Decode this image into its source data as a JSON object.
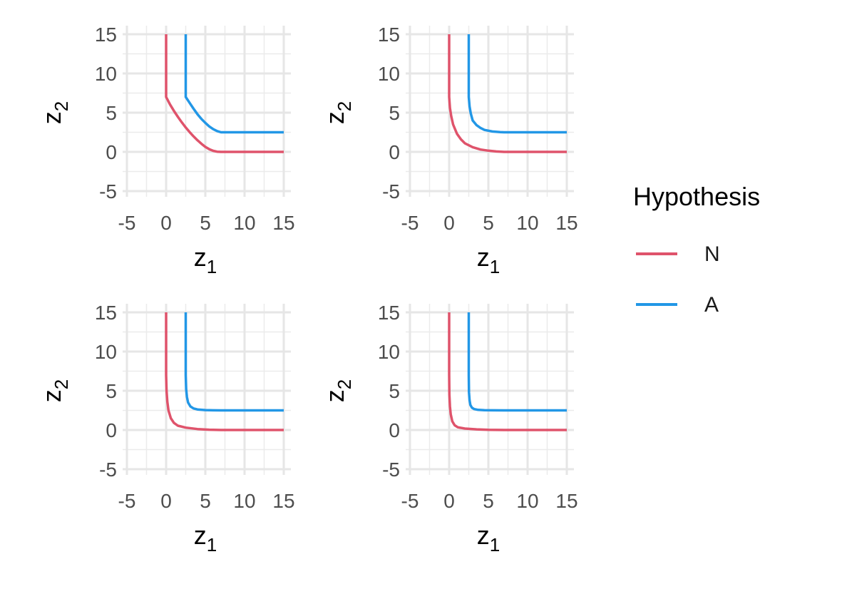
{
  "chart_data": [
    {
      "type": "line",
      "xlabel": "z",
      "xlabel_sub": "1",
      "ylabel": "z",
      "ylabel_sub": "2",
      "xlim": [
        -5,
        15
      ],
      "ylim": [
        -5,
        15
      ],
      "x_ticks": [
        "-5",
        "0",
        "5",
        "10",
        "15"
      ],
      "y_ticks": [
        "-5",
        "0",
        "5",
        "10",
        "15"
      ],
      "grid": true,
      "series": [
        {
          "name": "N",
          "color": "#DF536B",
          "x": [
            0,
            0,
            0.5,
            1,
            1.5,
            2,
            2.5,
            3,
            3.5,
            4,
            4.5,
            5,
            5.5,
            6,
            6.5,
            7,
            15
          ],
          "y": [
            15,
            7,
            6.04,
            5.22,
            4.46,
            3.76,
            3.11,
            2.52,
            1.97,
            1.48,
            1.04,
            0.64,
            0.35,
            0.14,
            0.03,
            0,
            0
          ]
        },
        {
          "name": "A",
          "color": "#2297E6",
          "x": [
            2.5,
            2.5,
            3,
            3.5,
            4,
            4.5,
            5,
            5.5,
            6,
            6.5,
            7,
            15
          ],
          "y": [
            15,
            7,
            6.25,
            5.5,
            4.8,
            4.2,
            3.7,
            3.25,
            2.9,
            2.65,
            2.5,
            2.5
          ]
        }
      ]
    },
    {
      "type": "line",
      "xlabel": "z",
      "xlabel_sub": "1",
      "ylabel": "z",
      "ylabel_sub": "2",
      "xlim": [
        -5,
        15
      ],
      "ylim": [
        -5,
        15
      ],
      "x_ticks": [
        "-5",
        "0",
        "5",
        "10",
        "15"
      ],
      "y_ticks": [
        "-5",
        "0",
        "5",
        "10",
        "15"
      ],
      "grid": true,
      "series": [
        {
          "name": "N",
          "color": "#DF536B",
          "x": [
            0,
            0,
            0.1,
            0.25,
            0.5,
            1,
            1.5,
            2,
            3,
            4,
            5,
            6,
            7,
            15
          ],
          "y": [
            15,
            7,
            5.6,
            4.6,
            3.5,
            2.3,
            1.6,
            1.1,
            0.6,
            0.3,
            0.15,
            0.05,
            0,
            0
          ]
        },
        {
          "name": "A",
          "color": "#2297E6",
          "x": [
            2.5,
            2.5,
            2.6,
            2.75,
            3,
            3.5,
            4,
            4.5,
            5.5,
            6.5,
            7,
            15
          ],
          "y": [
            15,
            7,
            5.8,
            4.9,
            4.0,
            3.4,
            3.05,
            2.8,
            2.6,
            2.52,
            2.5,
            2.5
          ]
        }
      ]
    },
    {
      "type": "line",
      "xlabel": "z",
      "xlabel_sub": "1",
      "ylabel": "z",
      "ylabel_sub": "2",
      "xlim": [
        -5,
        15
      ],
      "ylim": [
        -5,
        15
      ],
      "x_ticks": [
        "-5",
        "0",
        "5",
        "10",
        "15"
      ],
      "y_ticks": [
        "-5",
        "0",
        "5",
        "10",
        "15"
      ],
      "grid": true,
      "series": [
        {
          "name": "N",
          "color": "#DF536B",
          "x": [
            0,
            0,
            0.05,
            0.15,
            0.3,
            0.6,
            1,
            1.5,
            2.5,
            4,
            5.5,
            7,
            15
          ],
          "y": [
            15,
            7,
            5.0,
            3.6,
            2.5,
            1.5,
            0.9,
            0.55,
            0.3,
            0.12,
            0.04,
            0,
            0
          ]
        },
        {
          "name": "A",
          "color": "#2297E6",
          "x": [
            2.5,
            2.5,
            2.55,
            2.65,
            2.8,
            3.1,
            3.5,
            4,
            5,
            6,
            7,
            15
          ],
          "y": [
            15,
            7,
            5.2,
            4.2,
            3.5,
            3.0,
            2.75,
            2.62,
            2.54,
            2.51,
            2.5,
            2.5
          ]
        }
      ]
    },
    {
      "type": "line",
      "xlabel": "z",
      "xlabel_sub": "1",
      "ylabel": "z",
      "ylabel_sub": "2",
      "xlim": [
        -5,
        15
      ],
      "ylim": [
        -5,
        15
      ],
      "x_ticks": [
        "-5",
        "0",
        "5",
        "10",
        "15"
      ],
      "y_ticks": [
        "-5",
        "0",
        "5",
        "10",
        "15"
      ],
      "grid": true,
      "series": [
        {
          "name": "N",
          "color": "#DF536B",
          "x": [
            0,
            0,
            0.03,
            0.1,
            0.2,
            0.4,
            0.7,
            1.1,
            2,
            3.5,
            5,
            7,
            15
          ],
          "y": [
            15,
            7,
            4.5,
            3.0,
            2.0,
            1.1,
            0.6,
            0.35,
            0.18,
            0.08,
            0.03,
            0,
            0
          ]
        },
        {
          "name": "A",
          "color": "#2297E6",
          "x": [
            2.5,
            2.5,
            2.53,
            2.6,
            2.7,
            2.9,
            3.2,
            3.7,
            4.5,
            5.5,
            7,
            15
          ],
          "y": [
            15,
            7,
            4.8,
            3.8,
            3.2,
            2.85,
            2.66,
            2.56,
            2.52,
            2.505,
            2.5,
            2.5
          ]
        }
      ]
    }
  ],
  "legend": {
    "title": "Hypothesis",
    "items": [
      {
        "label": "N",
        "color": "#DF536B"
      },
      {
        "label": "A",
        "color": "#2297E6"
      }
    ]
  }
}
